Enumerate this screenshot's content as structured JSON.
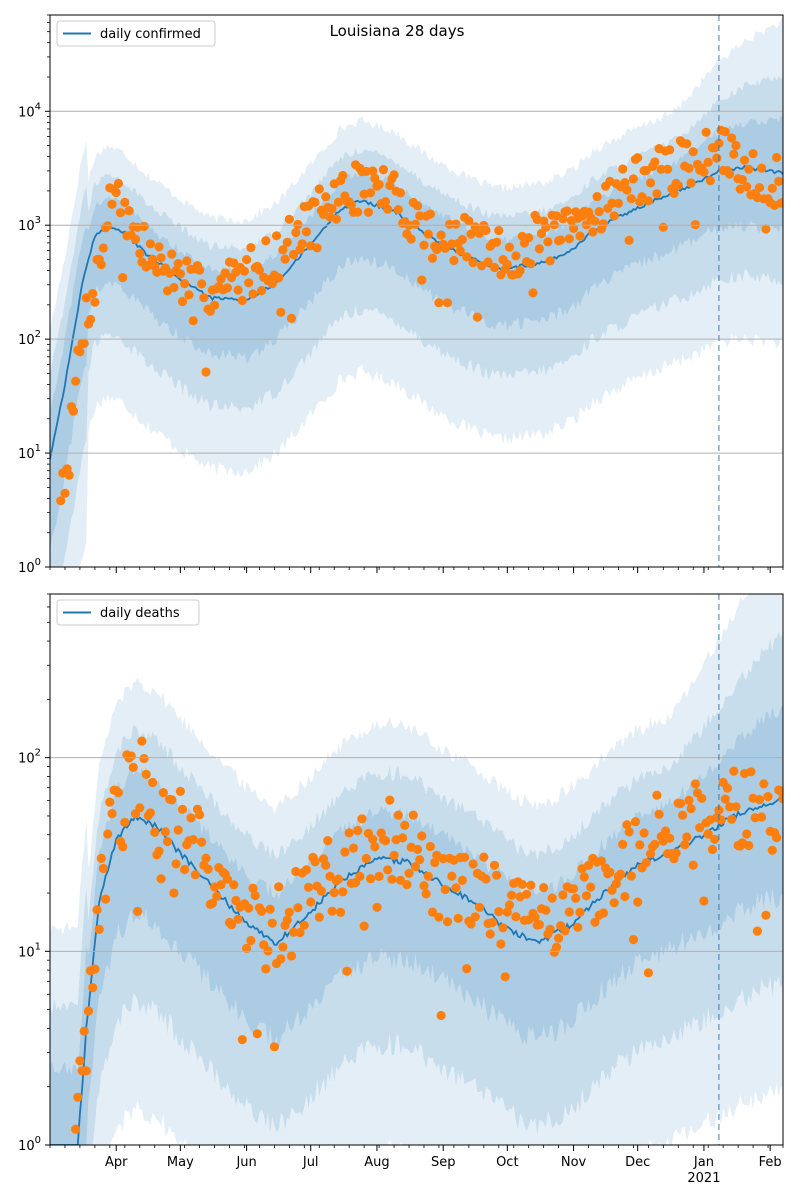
{
  "chart_data": [
    {
      "type": "line",
      "title": "Louisiana 28 days",
      "yscale": "log",
      "ylim": [
        1,
        70000
      ],
      "xlim": [
        "2020-03-01",
        "2021-02-07"
      ],
      "y_ticks": [
        1,
        10,
        100,
        1000,
        10000
      ],
      "y_tick_labels": [
        "10^0",
        "10^1",
        "10^2",
        "10^3",
        "10^4"
      ],
      "x_month_ticks": [
        "2020-04-01",
        "2020-05-01",
        "2020-06-01",
        "2020-07-01",
        "2020-08-01",
        "2020-09-01",
        "2020-10-01",
        "2020-11-01",
        "2020-12-01",
        "2021-01-01",
        "2021-02-01"
      ],
      "x_month_labels": [
        "Apr",
        "May",
        "Jun",
        "Jul",
        "Aug",
        "Sep",
        "Oct",
        "Nov",
        "Dec",
        "Jan",
        "Feb"
      ],
      "x_year_label": "2021",
      "grid": "horizontal",
      "legend": {
        "position": "upper-left",
        "entries": [
          "daily confirmed"
        ]
      },
      "vline_date": "2021-01-08",
      "colors": {
        "line": "#1f77b4",
        "points": "#ff7f0e",
        "band": "#1f77b4",
        "vline": "#1f77b4"
      },
      "series": [
        {
          "name": "daily confirmed",
          "kind": "model_median",
          "anchors": [
            [
              "2020-03-01",
              9
            ],
            [
              "2020-03-08",
              40
            ],
            [
              "2020-03-16",
              300
            ],
            [
              "2020-03-22",
              800
            ],
            [
              "2020-03-28",
              1000
            ],
            [
              "2020-04-05",
              850
            ],
            [
              "2020-04-15",
              560
            ],
            [
              "2020-05-01",
              340
            ],
            [
              "2020-05-15",
              230
            ],
            [
              "2020-06-01",
              220
            ],
            [
              "2020-06-15",
              310
            ],
            [
              "2020-07-01",
              680
            ],
            [
              "2020-07-15",
              1400
            ],
            [
              "2020-07-25",
              1650
            ],
            [
              "2020-08-10",
              1300
            ],
            [
              "2020-08-25",
              800
            ],
            [
              "2020-09-10",
              550
            ],
            [
              "2020-09-25",
              420
            ],
            [
              "2020-10-05",
              430
            ],
            [
              "2020-10-20",
              480
            ],
            [
              "2020-11-01",
              620
            ],
            [
              "2020-11-10",
              900
            ],
            [
              "2020-11-25",
              1250
            ],
            [
              "2020-12-10",
              1700
            ],
            [
              "2020-12-25",
              2200
            ],
            [
              "2021-01-08",
              3000
            ],
            [
              "2021-01-20",
              3200
            ],
            [
              "2021-02-07",
              2900
            ]
          ]
        },
        {
          "name": "observed",
          "kind": "scatter",
          "anchors": [
            [
              "2020-03-06",
              5
            ],
            [
              "2020-03-10",
              10
            ],
            [
              "2020-03-14",
              60
            ],
            [
              "2020-03-17",
              140
            ],
            [
              "2020-03-20",
              220
            ],
            [
              "2020-03-24",
              450
            ],
            [
              "2020-03-28",
              1200
            ],
            [
              "2020-04-01",
              2500
            ],
            [
              "2020-04-05",
              1300
            ],
            [
              "2020-04-10",
              750
            ],
            [
              "2020-04-20",
              450
            ],
            [
              "2020-05-01",
              350
            ],
            [
              "2020-05-10",
              260
            ],
            [
              "2020-05-20",
              280
            ],
            [
              "2020-06-01",
              380
            ],
            [
              "2020-06-15",
              520
            ],
            [
              "2020-07-01",
              1100
            ],
            [
              "2020-07-15",
              1800
            ],
            [
              "2020-07-25",
              2200
            ],
            [
              "2020-08-05",
              2000
            ],
            [
              "2020-08-20",
              1100
            ],
            [
              "2020-09-01",
              700
            ],
            [
              "2020-09-15",
              700
            ],
            [
              "2020-10-01",
              520
            ],
            [
              "2020-10-15",
              750
            ],
            [
              "2020-11-01",
              850
            ],
            [
              "2020-11-15",
              1600
            ],
            [
              "2020-12-01",
              2500
            ],
            [
              "2020-12-15",
              3000
            ],
            [
              "2021-01-01",
              4000
            ],
            [
              "2021-01-10",
              4200
            ],
            [
              "2021-01-20",
              3200
            ],
            [
              "2021-02-07",
              2200
            ]
          ]
        }
      ]
    },
    {
      "type": "line",
      "title": "",
      "yscale": "log",
      "ylim": [
        1,
        700
      ],
      "xlim": [
        "2020-03-01",
        "2021-02-07"
      ],
      "y_ticks": [
        1,
        10,
        100
      ],
      "y_tick_labels": [
        "10^0",
        "10^1",
        "10^2"
      ],
      "x_month_ticks": [
        "2020-04-01",
        "2020-05-01",
        "2020-06-01",
        "2020-07-01",
        "2020-08-01",
        "2020-09-01",
        "2020-10-01",
        "2020-11-01",
        "2020-12-01",
        "2021-01-01",
        "2021-02-01"
      ],
      "x_month_labels": [
        "Apr",
        "May",
        "Jun",
        "Jul",
        "Aug",
        "Sep",
        "Oct",
        "Nov",
        "Dec",
        "Jan",
        "Feb"
      ],
      "x_year_label": "2021",
      "grid": "horizontal",
      "legend": {
        "position": "upper-left",
        "entries": [
          "daily deaths"
        ]
      },
      "vline_date": "2021-01-08",
      "colors": {
        "line": "#1f77b4",
        "points": "#ff7f0e",
        "band": "#1f77b4",
        "vline": "#1f77b4"
      },
      "series": [
        {
          "name": "daily deaths",
          "kind": "model_median",
          "anchors": [
            [
              "2020-03-01",
              1
            ],
            [
              "2020-03-14",
              1
            ],
            [
              "2020-03-18",
              4
            ],
            [
              "2020-03-24",
              18
            ],
            [
              "2020-04-01",
              38
            ],
            [
              "2020-04-10",
              50
            ],
            [
              "2020-04-20",
              44
            ],
            [
              "2020-05-01",
              32
            ],
            [
              "2020-05-15",
              22
            ],
            [
              "2020-06-01",
              14
            ],
            [
              "2020-06-15",
              11
            ],
            [
              "2020-07-01",
              16
            ],
            [
              "2020-07-15",
              23
            ],
            [
              "2020-08-01",
              30
            ],
            [
              "2020-08-15",
              29
            ],
            [
              "2020-09-01",
              22
            ],
            [
              "2020-09-15",
              18
            ],
            [
              "2020-10-01",
              13
            ],
            [
              "2020-10-15",
              11
            ],
            [
              "2020-11-01",
              14
            ],
            [
              "2020-11-15",
              20
            ],
            [
              "2020-12-01",
              28
            ],
            [
              "2020-12-15",
              32
            ],
            [
              "2021-01-01",
              40
            ],
            [
              "2021-01-15",
              50
            ],
            [
              "2021-02-07",
              62
            ]
          ]
        },
        {
          "name": "observed",
          "kind": "scatter",
          "anchors": [
            [
              "2020-03-12",
              1
            ],
            [
              "2020-03-16",
              2
            ],
            [
              "2020-03-20",
              6
            ],
            [
              "2020-03-24",
              15
            ],
            [
              "2020-03-28",
              35
            ],
            [
              "2020-04-05",
              60
            ],
            [
              "2020-04-12",
              80
            ],
            [
              "2020-04-20",
              50
            ],
            [
              "2020-05-01",
              40
            ],
            [
              "2020-05-10",
              35
            ],
            [
              "2020-05-20",
              22
            ],
            [
              "2020-06-01",
              14
            ],
            [
              "2020-06-10",
              12
            ],
            [
              "2020-06-20",
              14
            ],
            [
              "2020-07-01",
              20
            ],
            [
              "2020-07-15",
              25
            ],
            [
              "2020-08-01",
              38
            ],
            [
              "2020-08-15",
              35
            ],
            [
              "2020-09-01",
              22
            ],
            [
              "2020-09-15",
              20
            ],
            [
              "2020-10-01",
              15
            ],
            [
              "2020-10-15",
              13
            ],
            [
              "2020-11-01",
              16
            ],
            [
              "2020-11-15",
              22
            ],
            [
              "2020-12-01",
              35
            ],
            [
              "2020-12-15",
              40
            ],
            [
              "2021-01-01",
              45
            ],
            [
              "2021-01-10",
              60
            ],
            [
              "2021-01-20",
              55
            ],
            [
              "2021-02-07",
              45
            ]
          ]
        }
      ]
    }
  ]
}
